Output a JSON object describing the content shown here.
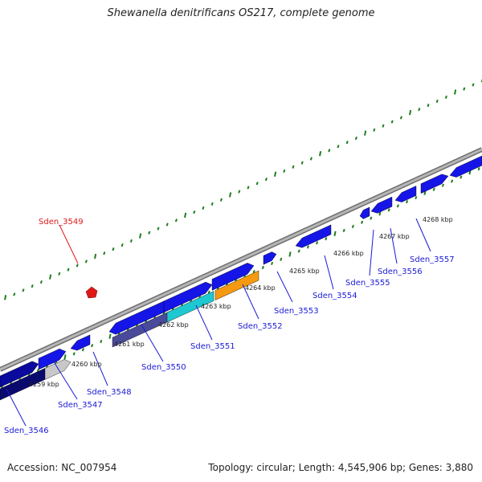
{
  "title": "Shewanella denitrificans OS217, complete genome",
  "footer": {
    "accession": "Accession: NC_007954",
    "summary": "Topology: circular; Length: 4,545,906 bp; Genes: 3,880"
  },
  "colors": {
    "backbone": "#8c8c8c",
    "ticks": "#1e7d1e",
    "gene": "#1515e8",
    "label": "#1a1ad6",
    "highlight": "#e01818",
    "cyan": "#1ec8d0",
    "orange": "#f59a10",
    "navy": "#0a0a6e",
    "gray": "#c8c8c8"
  },
  "scale_labels": [
    "4259 kbp",
    "4260 kbp",
    "4261 kbp",
    "4262 kbp",
    "4263 kbp",
    "4264 kbp",
    "4265 kbp",
    "4266 kbp",
    "4267 kbp",
    "4268 kbp"
  ],
  "genes": [
    {
      "label": "Sden_3546",
      "color": "#1a1ad6"
    },
    {
      "label": "Sden_3547",
      "color": "#1a1ad6"
    },
    {
      "label": "Sden_3548",
      "color": "#1a1ad6"
    },
    {
      "label": "Sden_3549",
      "color": "#e01818"
    },
    {
      "label": "Sden_3550",
      "color": "#1a1ad6"
    },
    {
      "label": "Sden_3551",
      "color": "#1a1ad6"
    },
    {
      "label": "Sden_3552",
      "color": "#1a1ad6"
    },
    {
      "label": "Sden_3553",
      "color": "#1a1ad6"
    },
    {
      "label": "Sden_3554",
      "color": "#1a1ad6"
    },
    {
      "label": "Sden_3555",
      "color": "#1a1ad6"
    },
    {
      "label": "Sden_3556",
      "color": "#1a1ad6"
    },
    {
      "label": "Sden_3557",
      "color": "#1a1ad6"
    }
  ]
}
